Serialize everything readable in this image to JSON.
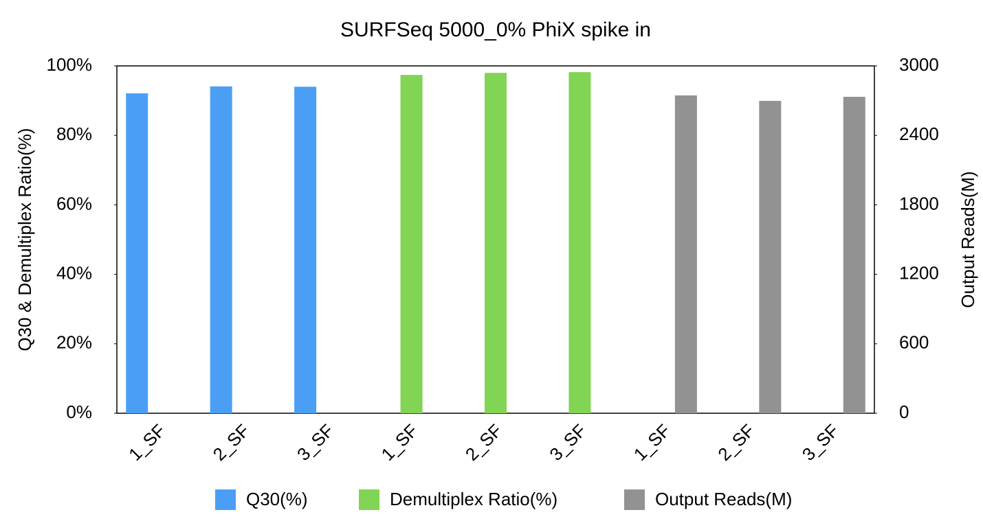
{
  "chart_data": {
    "type": "bar",
    "title": "SURFSeq 5000_0% PhiX spike in",
    "y_label": "Q30 & Demultiplex Ratio(%)",
    "y2_label": "Output Reads(M)",
    "categories": [
      "1_SF",
      "2_SF",
      "3_SF",
      "1_SF",
      "2_SF",
      "3_SF",
      "1_SF",
      "2_SF",
      "3_SF"
    ],
    "series": [
      {
        "name": "Q30(%)",
        "color": "#4a9ff5",
        "values": [
          92.1,
          94.1,
          94.0,
          null,
          null,
          null,
          null,
          null,
          null
        ]
      },
      {
        "name": "Demultiplex Ratio(%)",
        "color": "#82d455",
        "values": [
          null,
          null,
          null,
          97.4,
          98.0,
          98.2,
          null,
          null,
          null
        ]
      },
      {
        "name": "Output Reads(M)",
        "color": "#929292",
        "axis": "y2",
        "values": [
          null,
          null,
          null,
          null,
          null,
          null,
          2745,
          2698,
          2733
        ]
      }
    ],
    "ylim": [
      0,
      100
    ],
    "yticks": [
      {
        "value": 0,
        "label": "0%"
      },
      {
        "value": 20,
        "label": "20%"
      },
      {
        "value": 40,
        "label": "40%"
      },
      {
        "value": 60,
        "label": "60%"
      },
      {
        "value": 80,
        "label": "80%"
      },
      {
        "value": 100,
        "label": "100%"
      }
    ],
    "y2lim": [
      0,
      3000
    ],
    "y2ticks": [
      0,
      600,
      1200,
      1800,
      2400,
      3000
    ],
    "grid": false,
    "legend": "bottom"
  }
}
